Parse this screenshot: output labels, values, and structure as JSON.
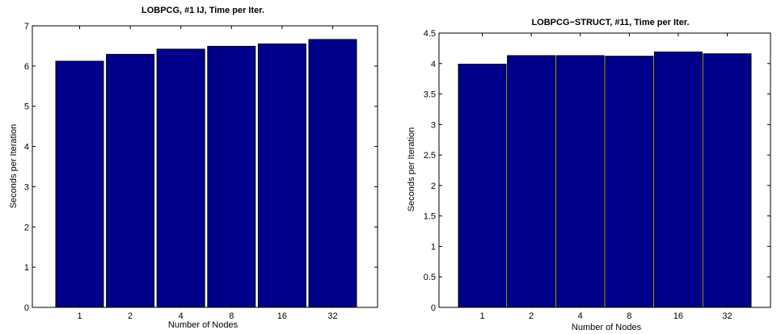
{
  "chart_data": [
    {
      "type": "bar",
      "title": "LOBPCG, #1 IJ, Time per Iter.",
      "xlabel": "Number of Nodes",
      "ylabel": "Seconds per Iteration",
      "categories": [
        "1",
        "2",
        "4",
        "8",
        "16",
        "32"
      ],
      "values": [
        6.12,
        6.29,
        6.42,
        6.49,
        6.55,
        6.66
      ],
      "ylim": [
        0,
        7
      ],
      "yticks": [
        "0",
        "1",
        "2",
        "3",
        "4",
        "5",
        "6",
        "7"
      ],
      "bar_color": "#00008b",
      "grid": false
    },
    {
      "type": "bar",
      "title": "LOBPCG−STRUCT, #11, Time per Iter.",
      "xlabel": "Number of Nodes",
      "ylabel": "Seconds per Iteration",
      "categories": [
        "1",
        "2",
        "4",
        "8",
        "16",
        "32"
      ],
      "values": [
        3.99,
        4.13,
        4.13,
        4.12,
        4.19,
        4.16
      ],
      "ylim": [
        0,
        4.5
      ],
      "yticks": [
        "0",
        "0.5",
        "1",
        "1.5",
        "2",
        "2.5",
        "3",
        "3.5",
        "4",
        "4.5"
      ],
      "bar_color": "#00008b",
      "grid": false
    }
  ]
}
